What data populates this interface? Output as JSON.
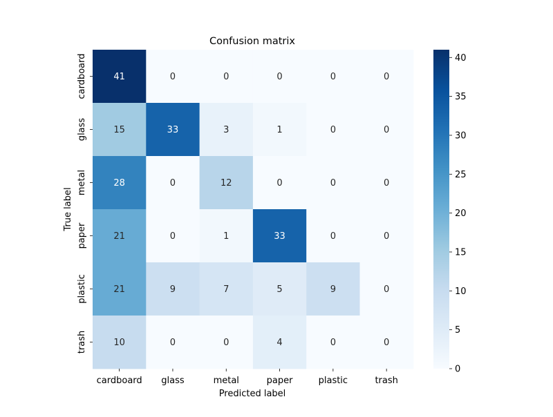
{
  "chart_data": {
    "type": "heatmap",
    "title": "Confusion matrix",
    "xlabel": "Predicted label",
    "ylabel": "True label",
    "x_categories": [
      "cardboard",
      "glass",
      "metal",
      "paper",
      "plastic",
      "trash"
    ],
    "y_categories": [
      "cardboard",
      "glass",
      "metal",
      "paper",
      "plastic",
      "trash"
    ],
    "values": [
      [
        41,
        0,
        0,
        0,
        0,
        0
      ],
      [
        15,
        33,
        3,
        1,
        0,
        0
      ],
      [
        28,
        0,
        12,
        0,
        0,
        0
      ],
      [
        21,
        0,
        1,
        33,
        0,
        0
      ],
      [
        21,
        9,
        7,
        5,
        9,
        0
      ],
      [
        10,
        0,
        0,
        4,
        0,
        0
      ]
    ],
    "colormap": "Blues",
    "vmin": 0,
    "vmax": 41,
    "colorbar_ticks": [
      0,
      5,
      10,
      15,
      20,
      25,
      30,
      35,
      40
    ],
    "annotate": true
  }
}
